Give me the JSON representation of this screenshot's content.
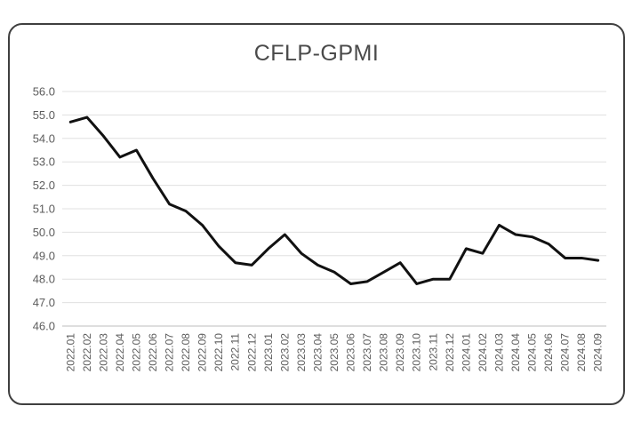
{
  "chart_data": {
    "type": "line",
    "title": "CFLP-GPMI",
    "xlabel": "",
    "ylabel": "",
    "ylim": [
      46.0,
      56.0
    ],
    "y_ticks": [
      "46.0",
      "47.0",
      "48.0",
      "49.0",
      "50.0",
      "51.0",
      "52.0",
      "53.0",
      "54.0",
      "55.0",
      "56.0"
    ],
    "grid": "horizontal",
    "legend": "none",
    "line_color": "#111111",
    "x": [
      "2022.01",
      "2022.02",
      "2022.03",
      "2022.04",
      "2022.05",
      "2022.06",
      "2022.07",
      "2022.08",
      "2022.09",
      "2022.10",
      "2022.11",
      "2022.12",
      "2023.01",
      "2023.02",
      "2023.03",
      "2023.04",
      "2023.05",
      "2023.06",
      "2023.07",
      "2023.08",
      "2023.09",
      "2023.10",
      "2023.11",
      "2023.12",
      "2024.01",
      "2024.02",
      "2024.03",
      "2024.04",
      "2024.05",
      "2024.06",
      "2024.07",
      "2024.08",
      "2024.09"
    ],
    "values": [
      54.7,
      54.9,
      54.1,
      53.2,
      53.5,
      52.3,
      51.2,
      50.9,
      50.3,
      49.4,
      48.7,
      48.6,
      49.3,
      49.9,
      49.1,
      48.6,
      48.3,
      47.8,
      47.9,
      48.3,
      48.7,
      47.8,
      48.0,
      48.0,
      49.3,
      49.1,
      50.3,
      49.9,
      49.8,
      49.5,
      48.9,
      48.9,
      48.8
    ]
  }
}
